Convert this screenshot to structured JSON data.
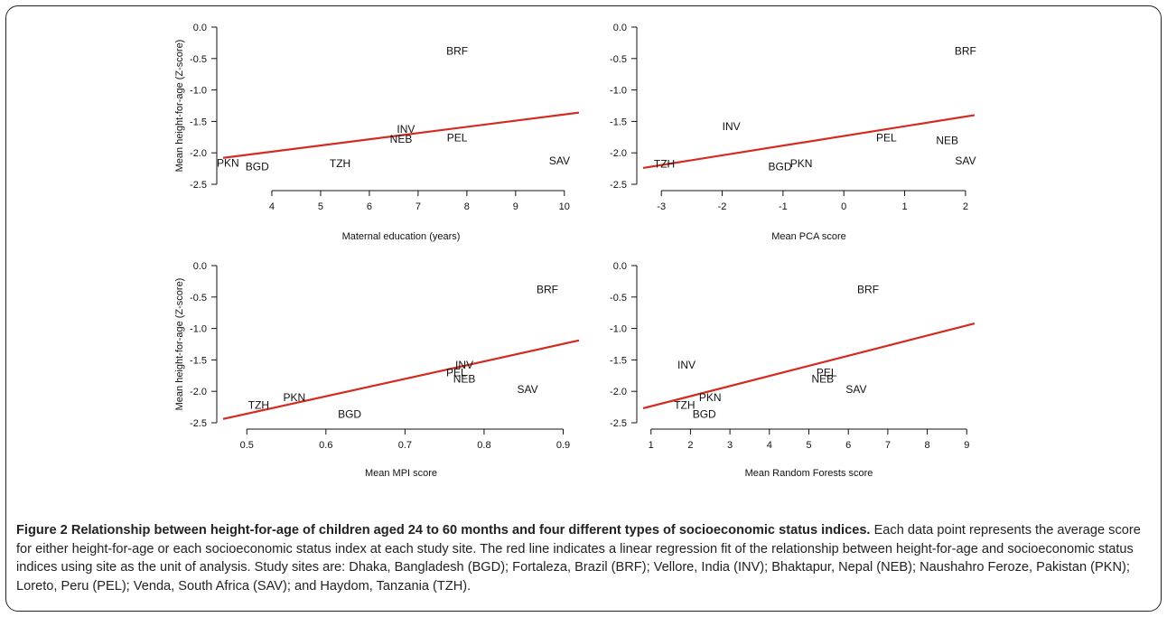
{
  "chart_data": [
    {
      "type": "scatter",
      "title": "",
      "xlabel": "Maternal education (years)",
      "ylabel": "Mean height-for-age (Z-score)",
      "xlim": [
        3.0,
        10.3
      ],
      "ylim": [
        -2.5,
        0.0
      ],
      "xticks": [
        4,
        5,
        6,
        7,
        8,
        9,
        10
      ],
      "yticks": [
        0.0,
        -0.5,
        -1.0,
        -1.5,
        -2.0,
        -2.5
      ],
      "points": [
        {
          "label": "BRF",
          "x": 7.8,
          "y": -0.38
        },
        {
          "label": "INV",
          "x": 6.75,
          "y": -1.62
        },
        {
          "label": "NEB",
          "x": 6.65,
          "y": -1.78
        },
        {
          "label": "PEL",
          "x": 7.8,
          "y": -1.76
        },
        {
          "label": "PKN",
          "x": 3.1,
          "y": -2.16
        },
        {
          "label": "BGD",
          "x": 3.7,
          "y": -2.22
        },
        {
          "label": "TZH",
          "x": 5.4,
          "y": -2.17
        },
        {
          "label": "SAV",
          "x": 9.9,
          "y": -2.13
        }
      ],
      "regression": {
        "x": [
          3.0,
          10.3
        ],
        "y": [
          -2.08,
          -1.36
        ],
        "color": "#d42a20"
      },
      "grid": false
    },
    {
      "type": "scatter",
      "title": "",
      "xlabel": "Mean PCA score",
      "ylabel": "",
      "xlim": [
        -3.3,
        2.15
      ],
      "ylim": [
        -2.5,
        0.0
      ],
      "xticks": [
        -3,
        -2,
        -1,
        0,
        1,
        2
      ],
      "yticks": [
        0.0,
        -0.5,
        -1.0,
        -1.5,
        -2.0,
        -2.5
      ],
      "points": [
        {
          "label": "BRF",
          "x": 2.0,
          "y": -0.38
        },
        {
          "label": "INV",
          "x": -1.85,
          "y": -1.58
        },
        {
          "label": "PEL",
          "x": 0.7,
          "y": -1.76
        },
        {
          "label": "NEB",
          "x": 1.7,
          "y": -1.8
        },
        {
          "label": "SAV",
          "x": 2.0,
          "y": -2.13
        },
        {
          "label": "TZH",
          "x": -2.95,
          "y": -2.18
        },
        {
          "label": "BGD",
          "x": -1.05,
          "y": -2.22
        },
        {
          "label": "PKN",
          "x": -0.7,
          "y": -2.17
        }
      ],
      "regression": {
        "x": [
          -3.3,
          2.15
        ],
        "y": [
          -2.24,
          -1.4
        ],
        "color": "#d42a20"
      },
      "grid": false
    },
    {
      "type": "scatter",
      "title": "",
      "xlabel": "Mean MPI score",
      "ylabel": "Mean height-for-age (Z-score)",
      "xlim": [
        0.47,
        0.92
      ],
      "ylim": [
        -2.5,
        0.0
      ],
      "xticks": [
        0.5,
        0.6,
        0.7,
        0.8,
        0.9
      ],
      "yticks": [
        0.0,
        -0.5,
        -1.0,
        -1.5,
        -2.0,
        -2.5
      ],
      "points": [
        {
          "label": "BRF",
          "x": 0.88,
          "y": -0.38
        },
        {
          "label": "INV",
          "x": 0.775,
          "y": -1.58
        },
        {
          "label": "PEL",
          "x": 0.765,
          "y": -1.7
        },
        {
          "label": "NEB",
          "x": 0.775,
          "y": -1.8
        },
        {
          "label": "SAV",
          "x": 0.855,
          "y": -1.97
        },
        {
          "label": "PKN",
          "x": 0.56,
          "y": -2.1
        },
        {
          "label": "TZH",
          "x": 0.515,
          "y": -2.22
        },
        {
          "label": "BGD",
          "x": 0.63,
          "y": -2.36
        }
      ],
      "regression": {
        "x": [
          0.47,
          0.92
        ],
        "y": [
          -2.44,
          -1.19
        ],
        "color": "#d42a20"
      },
      "grid": false
    },
    {
      "type": "scatter",
      "title": "",
      "xlabel": "Mean Random Forests score",
      "ylabel": "",
      "xlim": [
        0.8,
        9.2
      ],
      "ylim": [
        -2.5,
        0.0
      ],
      "xticks": [
        1,
        2,
        3,
        4,
        5,
        6,
        7,
        8,
        9
      ],
      "yticks": [
        0.0,
        -0.5,
        -1.0,
        -1.5,
        -2.0,
        -2.5
      ],
      "points": [
        {
          "label": "BRF",
          "x": 6.5,
          "y": -0.38
        },
        {
          "label": "INV",
          "x": 1.9,
          "y": -1.58
        },
        {
          "label": "PEL",
          "x": 5.45,
          "y": -1.7
        },
        {
          "label": "NEB",
          "x": 5.35,
          "y": -1.8
        },
        {
          "label": "SAV",
          "x": 6.2,
          "y": -1.97
        },
        {
          "label": "PKN",
          "x": 2.5,
          "y": -2.1
        },
        {
          "label": "TZH",
          "x": 1.85,
          "y": -2.22
        },
        {
          "label": "BGD",
          "x": 2.35,
          "y": -2.36
        }
      ],
      "regression": {
        "x": [
          0.8,
          9.2
        ],
        "y": [
          -2.27,
          -0.92
        ],
        "color": "#d42a20"
      },
      "grid": false
    }
  ],
  "caption": {
    "title": "Figure 2 Relationship between height-for-age of children aged 24 to 60 months and four different types of socioeconomic status indices.",
    "body": "Each data point represents the average score for either height-for-age or each socioeconomic status index at each study site. The red line indicates a linear regression fit of the relationship between height-for-age and socioeconomic status indices using site as the unit of analysis. Study sites are: Dhaka, Bangladesh (BGD); Fortaleza, Brazil (BRF); Vellore, India (INV); Bhaktapur, Nepal (NEB); Naushahro Feroze, Pakistan (PKN); Loreto, Peru (PEL); Venda, South Africa (SAV); and Haydom, Tanzania (TZH)."
  }
}
